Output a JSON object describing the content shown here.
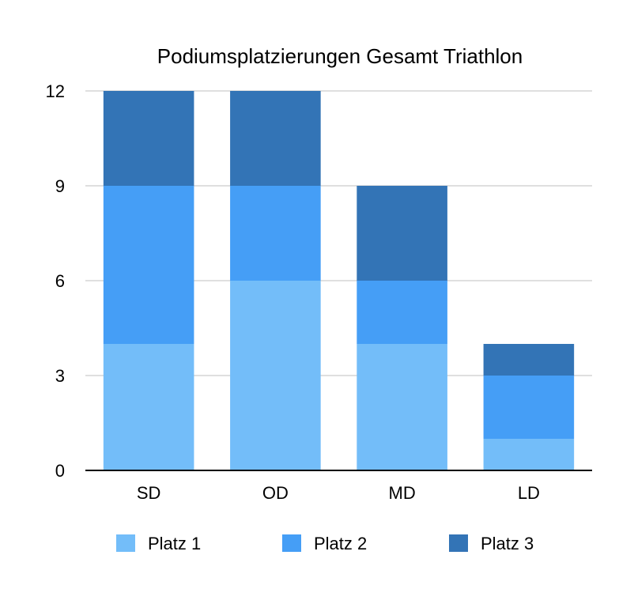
{
  "chart_data": {
    "type": "bar",
    "stacked": true,
    "title": "Podiumsplatzierungen Gesamt Triathlon",
    "xlabel": "",
    "ylabel": "",
    "categories": [
      "SD",
      "OD",
      "MD",
      "LD"
    ],
    "series": [
      {
        "name": "Platz 1",
        "values": [
          4,
          6,
          4,
          1
        ],
        "color": "#73bdf9"
      },
      {
        "name": "Platz 2",
        "values": [
          5,
          3,
          2,
          2
        ],
        "color": "#459ef6"
      },
      {
        "name": "Platz 3",
        "values": [
          3,
          3,
          3,
          1
        ],
        "color": "#3374b6"
      }
    ],
    "ylim": [
      0,
      12
    ],
    "yticks": [
      0,
      3,
      6,
      9,
      12
    ],
    "grid": true,
    "legend_position": "bottom"
  }
}
